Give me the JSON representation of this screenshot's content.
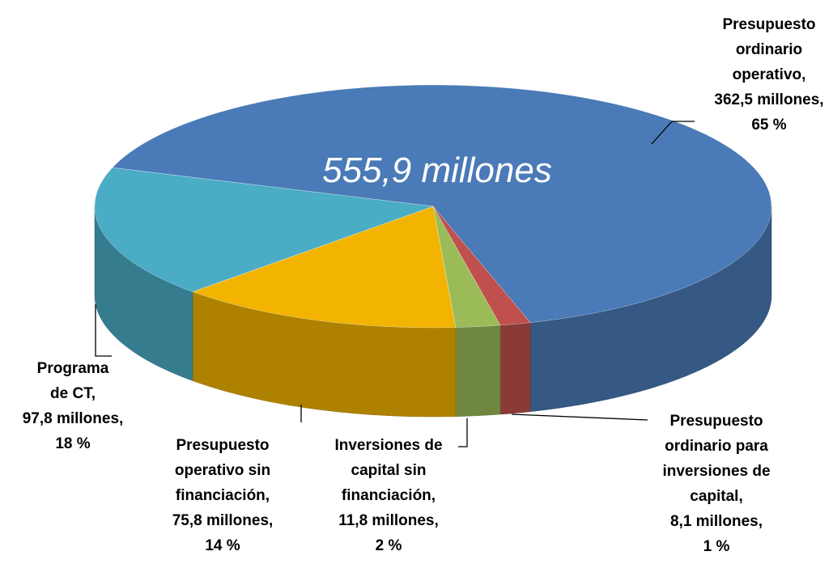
{
  "chart_data": {
    "type": "pie3d",
    "total_label": "555,9 millones",
    "categories": [
      "Presupuesto ordinario operativo,",
      "Presupuesto ordinario para inversiones de capital,",
      "Inversiones de capital sin financiación,",
      "Presupuesto operativo sin financiación,",
      "Programa de CT,"
    ],
    "values": [
      362.5,
      8.1,
      11.8,
      75.8,
      97.8
    ],
    "value_labels": [
      "362,5 millones,",
      "8,1 millones,",
      "11,8 millones,",
      "75,8 millones,",
      "97,8 millones,"
    ],
    "percentages": [
      65,
      1,
      2,
      14,
      18
    ],
    "percentage_labels": [
      "65 %",
      "1 %",
      "2 %",
      "14 %",
      "18 %"
    ],
    "colors": [
      "#4a7ab7",
      "#c0504d",
      "#9bbb59",
      "#f2b400",
      "#4aacc5"
    ]
  }
}
